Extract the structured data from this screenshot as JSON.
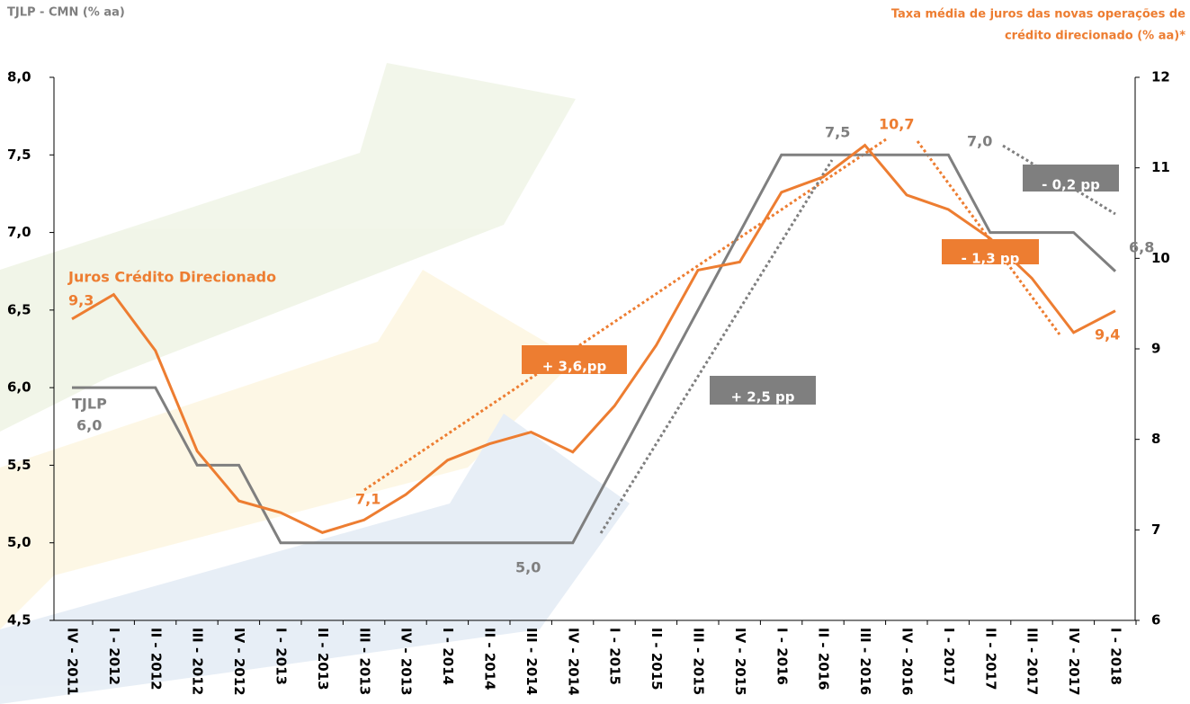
{
  "chart_data": {
    "type": "line",
    "y_title": "TJLP - CMN (% aa)",
    "y2_title": [
      "Taxa média de juros das novas operações de",
      "crédito direcionado  (% aa)*"
    ],
    "categories": [
      "IV - 2011",
      "I - 2012",
      "II - 2012",
      "III - 2012",
      "IV - 2012",
      "I - 2013",
      "II - 2013",
      "III - 2013",
      "IV - 2013",
      "I - 2014",
      "II - 2014",
      "III - 2014",
      "IV - 2014",
      "I - 2015",
      "II - 2015",
      "III - 2015",
      "IV - 2015",
      "I - 2016",
      "II - 2016",
      "III - 2016",
      "IV - 2016",
      "I - 2017",
      "II - 2017",
      "III - 2017",
      "IV - 2017",
      "I - 2018"
    ],
    "series": [
      {
        "name": "TJLP",
        "color": "#7f7f7f",
        "axis": "y",
        "values": [
          6.0,
          6.0,
          6.0,
          5.5,
          5.5,
          5.0,
          5.0,
          5.0,
          5.0,
          5.0,
          5.0,
          5.0,
          5.0,
          5.5,
          6.0,
          6.5,
          7.0,
          7.5,
          7.5,
          7.5,
          7.5,
          7.5,
          7.0,
          7.0,
          7.0,
          6.75
        ]
      },
      {
        "name": "Juros Crédito Direcionado",
        "color": "#ed7d31",
        "axis": "y2",
        "values": [
          9.33,
          9.6,
          8.98,
          7.87,
          7.32,
          7.19,
          6.97,
          7.11,
          7.39,
          7.77,
          7.95,
          8.08,
          7.86,
          8.37,
          9.04,
          9.87,
          9.96,
          10.73,
          10.9,
          11.25,
          10.7,
          10.54,
          10.22,
          9.78,
          9.18,
          9.42
        ]
      }
    ],
    "ylim": [
      4.5,
      8.0
    ],
    "yticks": [
      {
        "value": 4.5,
        "label": "4,5"
      },
      {
        "value": 5.0,
        "label": "5,0"
      },
      {
        "value": 5.5,
        "label": "5,5"
      },
      {
        "value": 6.0,
        "label": "6,0"
      },
      {
        "value": 6.5,
        "label": "6,5"
      },
      {
        "value": 7.0,
        "label": "7,0"
      },
      {
        "value": 7.5,
        "label": "7,5"
      },
      {
        "value": 8.0,
        "label": "8,0"
      }
    ],
    "y2lim": [
      6,
      12
    ],
    "y2ticks": [
      6,
      7,
      8,
      9,
      10,
      11,
      12
    ],
    "annotations": [
      "TJLP",
      "6,0",
      "5,0",
      "7,5",
      "7,0",
      "6,8",
      "9,3",
      "7,1",
      "10,7",
      "9,4",
      "+ 3,6,pp",
      "+ 2,5 pp",
      "- 1,3 pp",
      "- 0,2 pp"
    ]
  }
}
